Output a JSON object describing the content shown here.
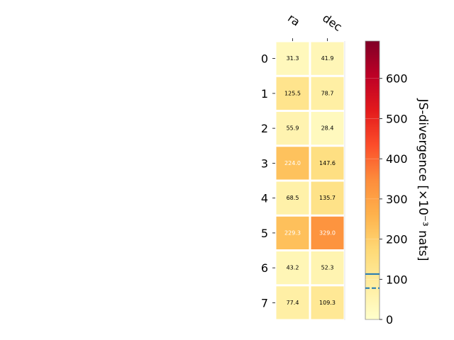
{
  "chart_data": {
    "type": "heatmap",
    "columns": [
      "ra",
      "dec"
    ],
    "rows": [
      "0",
      "1",
      "2",
      "3",
      "4",
      "5",
      "6",
      "7"
    ],
    "values": [
      [
        31.3,
        41.9
      ],
      [
        125.5,
        78.7
      ],
      [
        55.9,
        28.4
      ],
      [
        224.0,
        147.6
      ],
      [
        68.5,
        135.7
      ],
      [
        229.3,
        329.0
      ],
      [
        43.2,
        52.3
      ],
      [
        77.4,
        109.3
      ]
    ],
    "value_labels": [
      [
        "31.3",
        "41.9"
      ],
      [
        "125.5",
        "78.7"
      ],
      [
        "55.9",
        "28.4"
      ],
      [
        "224.0",
        "147.6"
      ],
      [
        "68.5",
        "135.7"
      ],
      [
        "229.3",
        "329.0"
      ],
      [
        "43.2",
        "52.3"
      ],
      [
        "77.4",
        "109.3"
      ]
    ],
    "colormap": "YlOrRd",
    "colorbar": {
      "label": "JS-divergence [×10⁻³ nats]",
      "range": [
        0,
        693
      ],
      "ticks": [
        0,
        100,
        200,
        300,
        400,
        500,
        600
      ],
      "tick_labels": [
        "0",
        "100",
        "200",
        "300",
        "400",
        "500",
        "600"
      ],
      "lines": [
        {
          "value": 113,
          "style": "solid",
          "color": "#1f77b4"
        },
        {
          "value": 78,
          "style": "dashed",
          "color": "#1f77b4"
        }
      ]
    }
  }
}
